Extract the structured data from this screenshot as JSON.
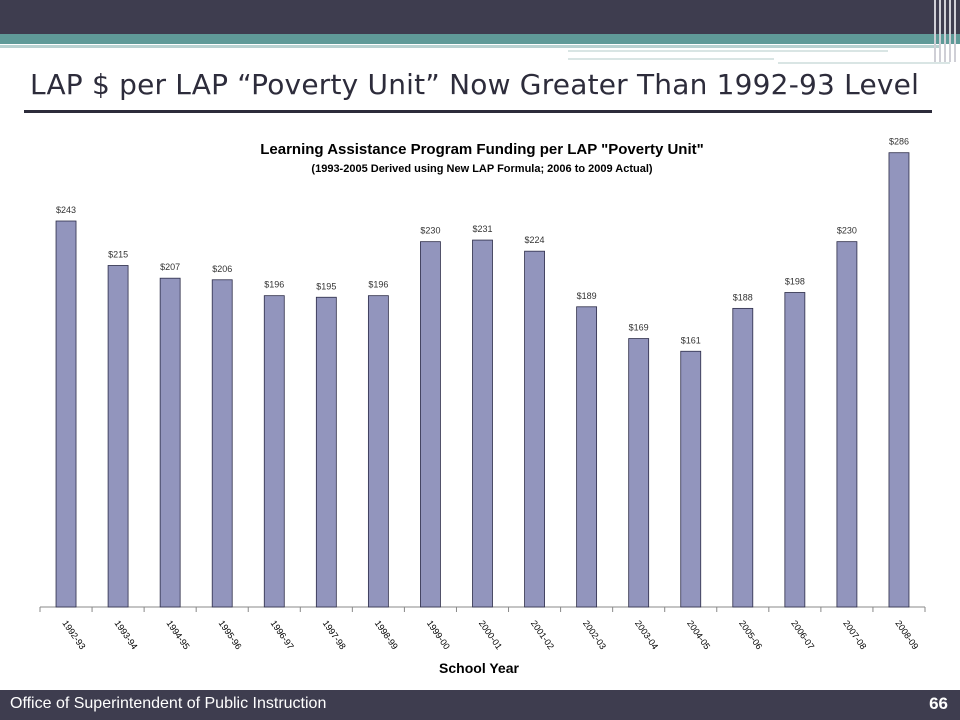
{
  "slide": {
    "title": "LAP $ per LAP “Poverty Unit” Now Greater Than 1992-93 Level",
    "footer": "Office of Superintendent of Public Instruction",
    "page_number": "66"
  },
  "colors": {
    "bar": "#9295bd",
    "bar_outline": "#2c2c48",
    "topbar": "#3e3d4f",
    "accent": "#5f9a98"
  },
  "chart_data": {
    "type": "bar",
    "title": "Learning Assistance Program Funding per LAP \"Poverty Unit\"",
    "subtitle": "(1993-2005 Derived using New LAP Formula; 2006 to 2009 Actual)",
    "xlabel": "School Year",
    "ylabel": "",
    "grid": false,
    "legend": "none",
    "categories": [
      "1992-93",
      "1993-94",
      "1994-95",
      "1995-96",
      "1996-97",
      "1997-98",
      "1998-99",
      "1999-00",
      "2000-01",
      "2001-02",
      "2002-03",
      "2003-04",
      "2004-05",
      "2005-06",
      "2006-07",
      "2007-08",
      "2008-09"
    ],
    "values": [
      243,
      215,
      207,
      206,
      196,
      195,
      196,
      230,
      231,
      224,
      189,
      169,
      161,
      188,
      198,
      230,
      286
    ],
    "data_labels": [
      "$243",
      "$215",
      "$207",
      "$206",
      "$196",
      "$195",
      "$196",
      "$230",
      "$231",
      "$224",
      "$189",
      "$169",
      "$161",
      "$188",
      "$198",
      "$230",
      "$286"
    ],
    "ylim": [
      0,
      300
    ]
  }
}
